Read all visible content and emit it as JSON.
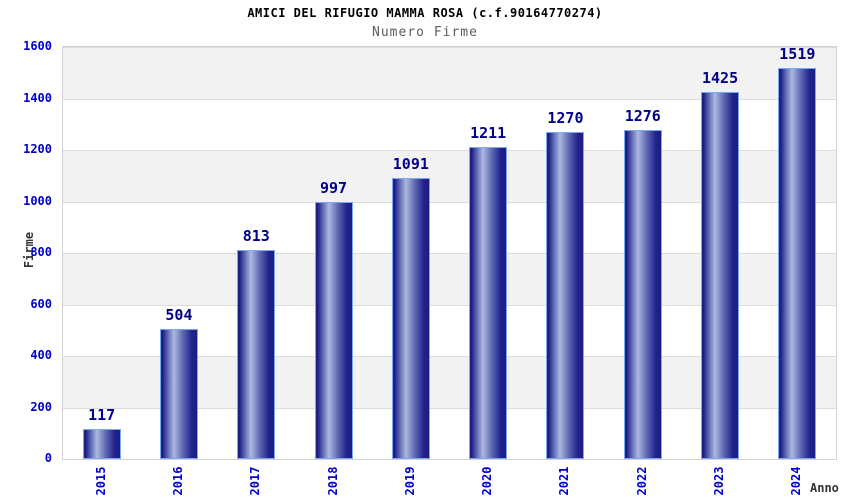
{
  "header": {
    "title": "AMICI DEL RIFUGIO MAMMA ROSA (c.f.90164770274)",
    "subtitle": "Numero Firme"
  },
  "chart_data": {
    "type": "bar",
    "title": "AMICI DEL RIFUGIO MAMMA ROSA (c.f.90164770274)",
    "subtitle": "Numero Firme",
    "categories": [
      "2015",
      "2016",
      "2017",
      "2018",
      "2019",
      "2020",
      "2021",
      "2022",
      "2023",
      "2024"
    ],
    "values": [
      117,
      504,
      813,
      997,
      1091,
      1211,
      1270,
      1276,
      1425,
      1519
    ],
    "xlabel": "Anno",
    "ylabel": "Firme",
    "ylim": [
      0,
      1600
    ],
    "ytick_step": 200,
    "yticks": [
      0,
      200,
      400,
      600,
      800,
      1000,
      1200,
      1400,
      1600
    ],
    "grid": "alternating-horizontal-bands",
    "legend_position": "none",
    "colors": {
      "bar_dark": "#1C1C84",
      "bar_deep": "#23238E",
      "bar_mid": "#5A65B0",
      "bar_highlight": "#AEB8E0",
      "bar_border": "#7AA9EF",
      "tick_label": "#0000CD",
      "value_label": "#00008B",
      "band_gray": "#F2F2F2",
      "band_white": "#FFFFFF",
      "gridline": "#DCDCDC",
      "plot_border": "#D3D3D3",
      "title": "#000000",
      "subtitle": "#5E5E5E",
      "axis_label": "#333333"
    }
  }
}
